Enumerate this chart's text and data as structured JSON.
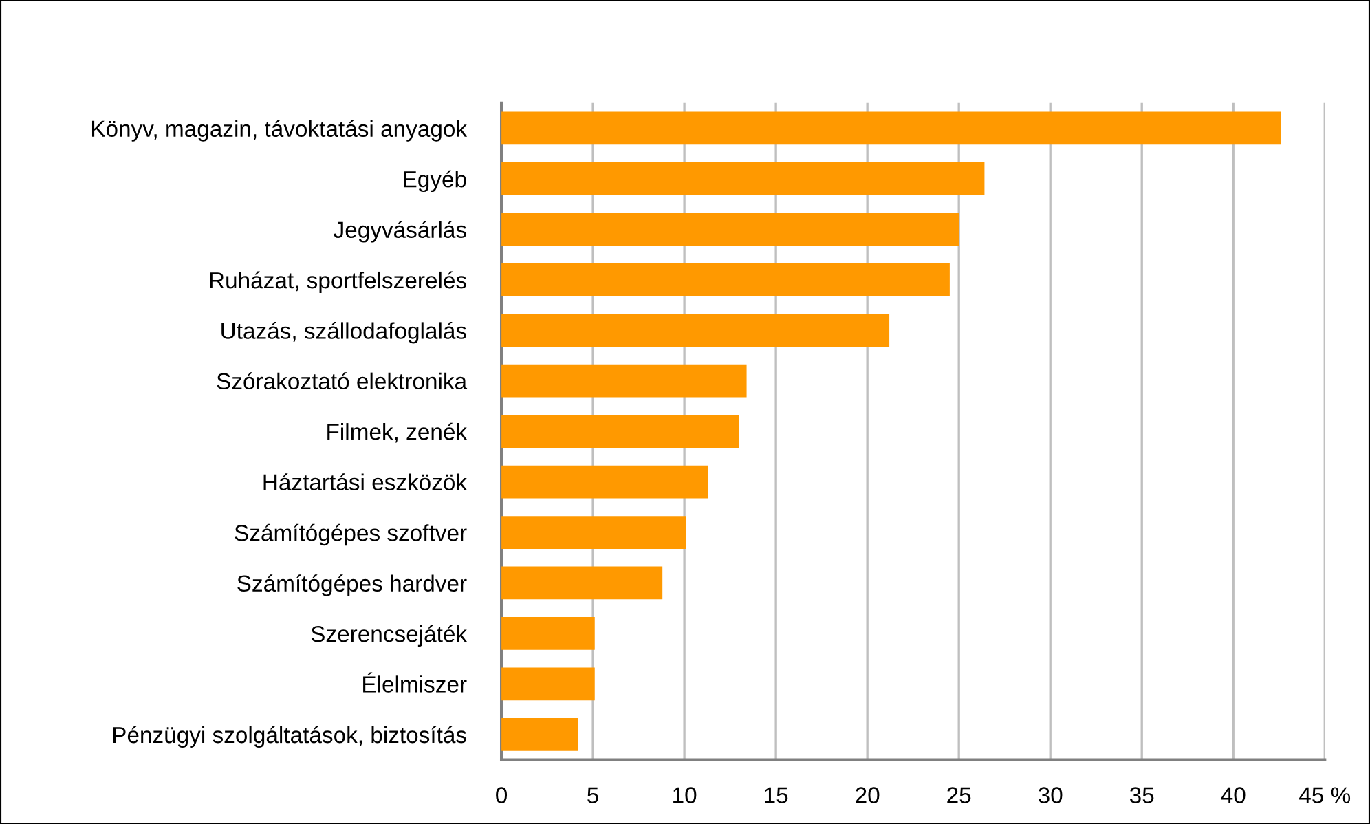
{
  "chart_data": {
    "type": "bar",
    "orientation": "horizontal",
    "categories": [
      "Könyv, magazin, távoktatási anyagok",
      "Egyéb",
      "Jegyvásárlás",
      "Ruházat, sportfelszerelés",
      "Utazás, szállodafoglalás",
      "Szórakoztató elektronika",
      "Filmek, zenék",
      "Háztartási eszközök",
      "Számítógépes szoftver",
      "Számítógépes hardver",
      "Szerencsejáték",
      "Élelmiszer",
      "Pénzügyi szolgáltatások, biztosítás"
    ],
    "values": [
      42.6,
      26.4,
      25.0,
      24.5,
      21.2,
      13.4,
      13.0,
      11.3,
      10.1,
      8.8,
      5.1,
      5.1,
      4.2
    ],
    "color": "#ff9900",
    "xlim": [
      0,
      45
    ],
    "xticks": [
      0,
      5,
      10,
      15,
      20,
      25,
      30,
      35,
      40,
      {
        "value": 45,
        "label": "45 %"
      }
    ],
    "grid": "x",
    "legend": false
  }
}
